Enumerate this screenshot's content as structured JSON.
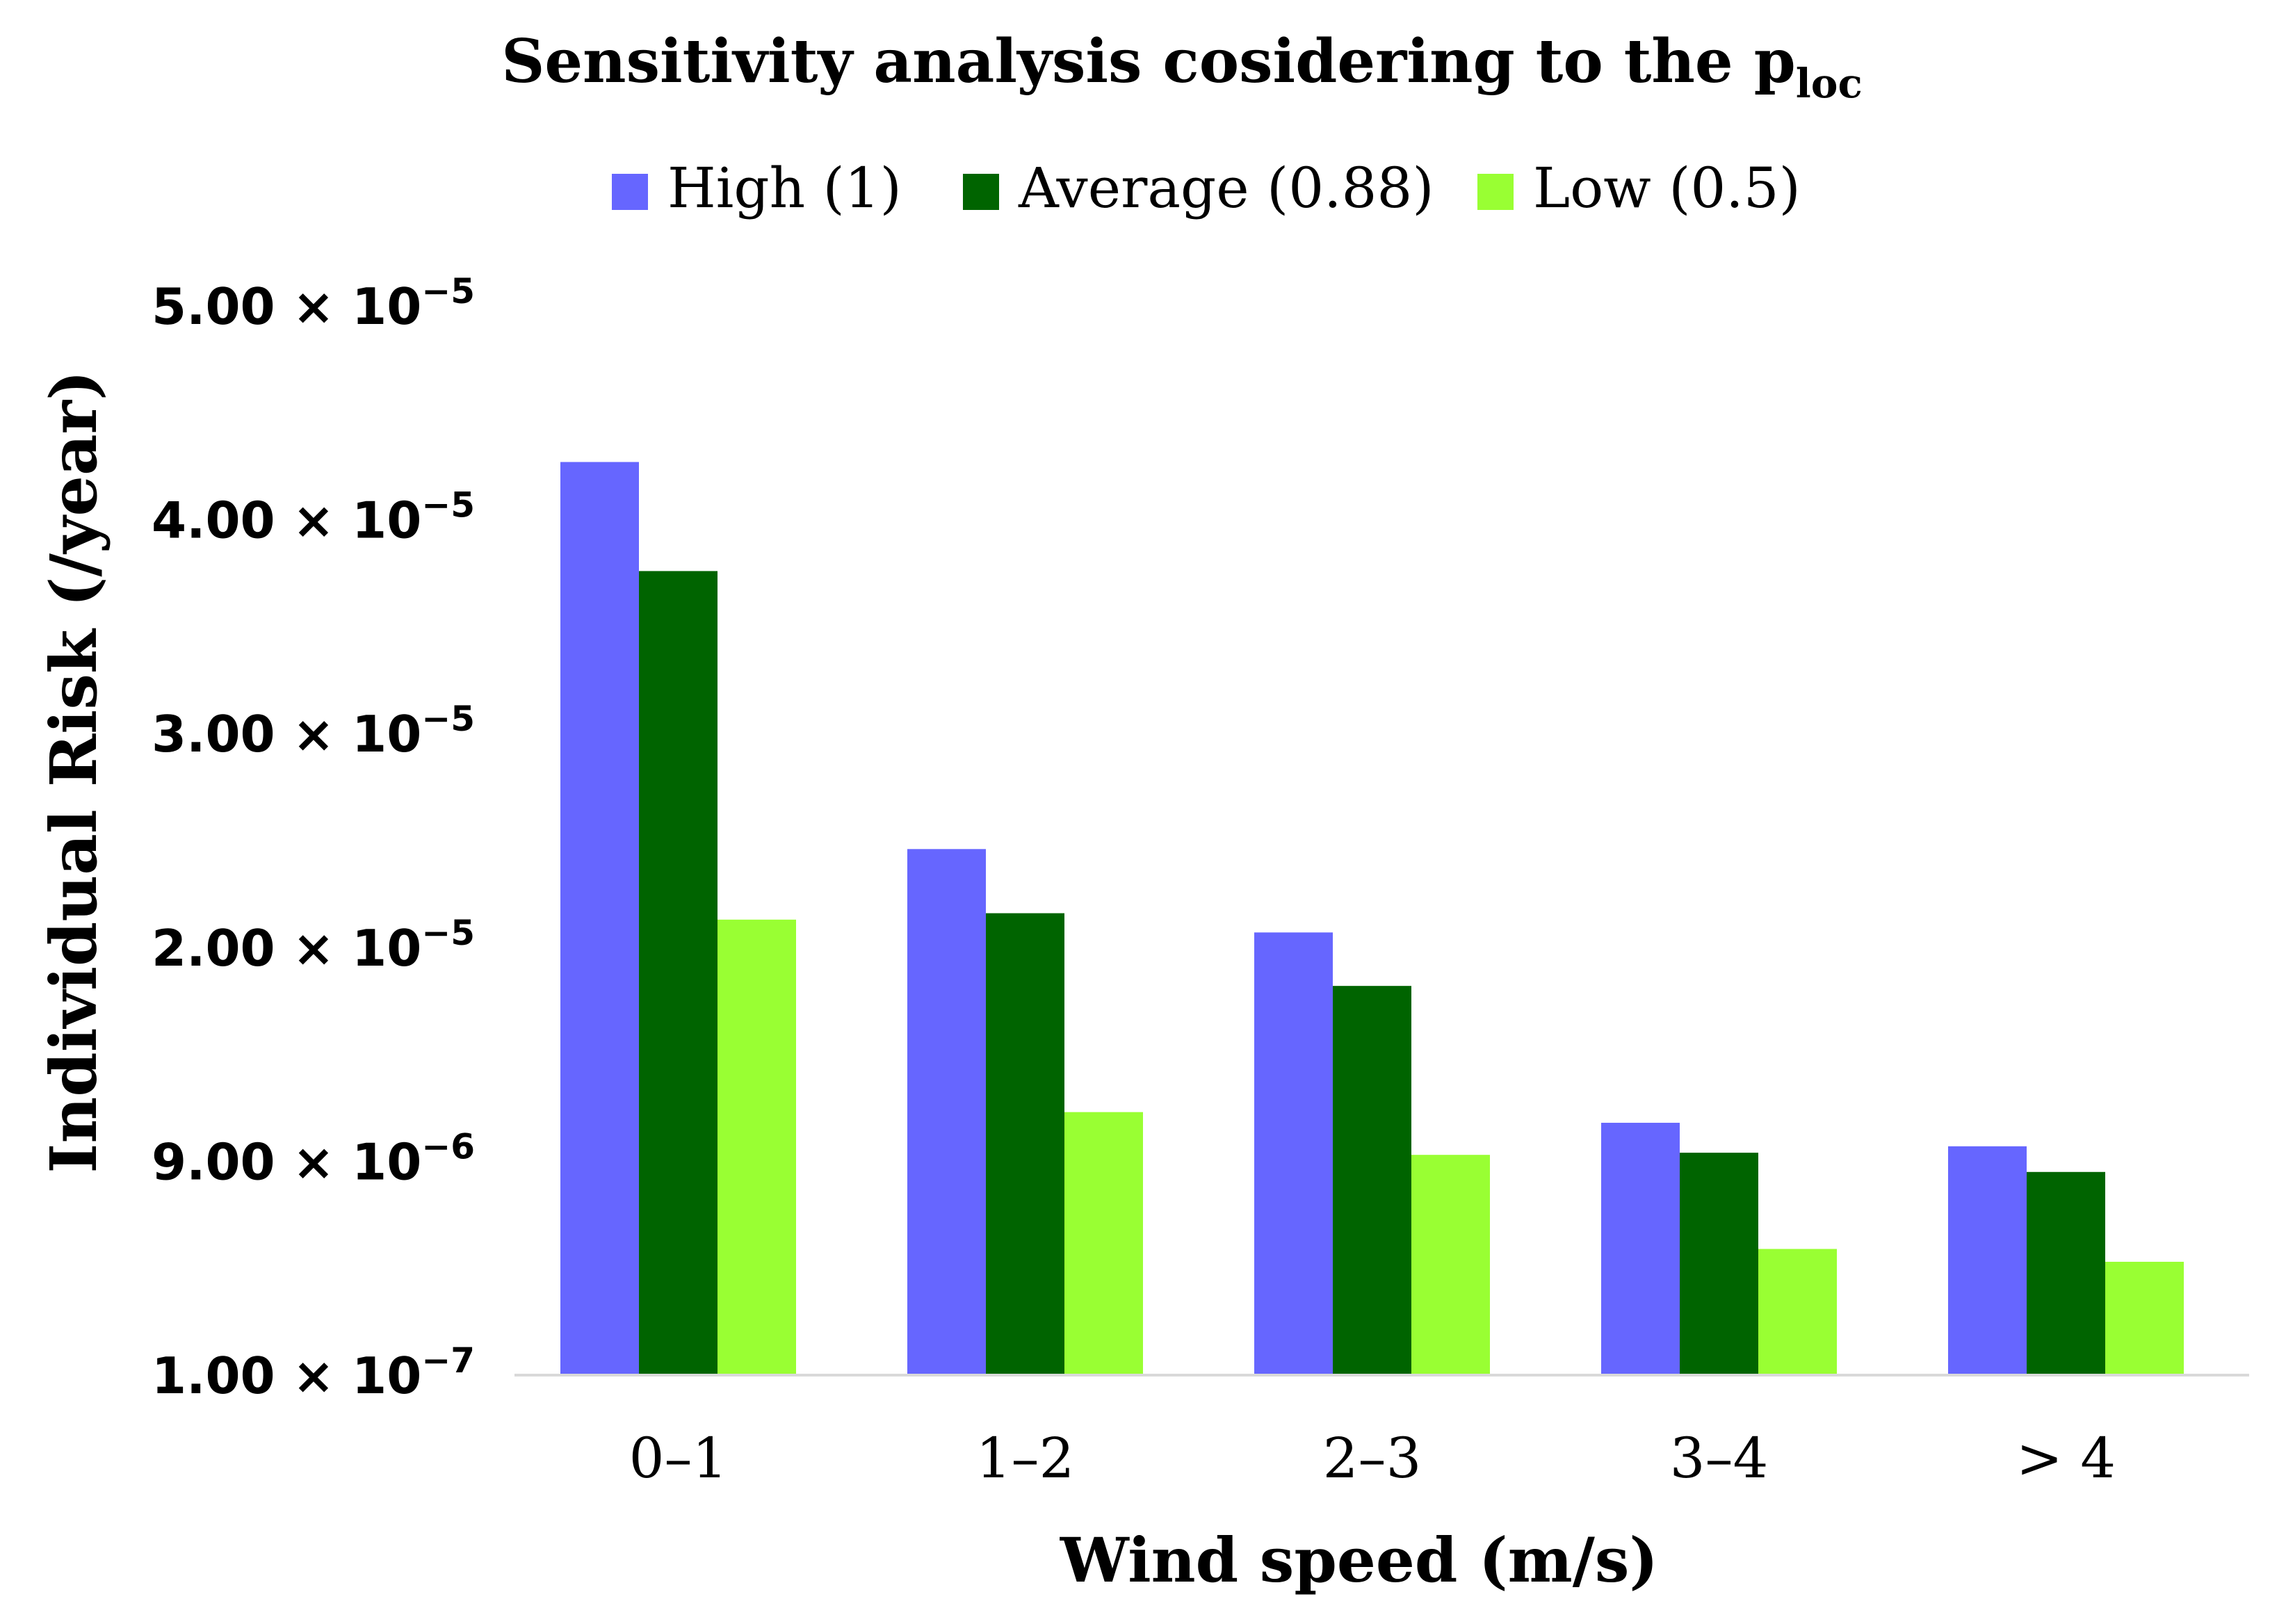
{
  "chart_data": {
    "type": "bar",
    "title": "Sensitivity analysis cosidering to the p",
    "title_subscript": "loc",
    "xlabel": "Wind speed (m/s)",
    "ylabel": "Individual Risk (/year)",
    "categories": [
      "0–1",
      "1–2",
      "2–3",
      "3–4",
      "> 4"
    ],
    "series": [
      {
        "name": "High (1)",
        "color": "#6666ff",
        "values": [
          4.27,
          2.46,
          2.07,
          1.18,
          1.07
        ]
      },
      {
        "name": "Average (0.88)",
        "color": "#006400",
        "values": [
          3.76,
          2.16,
          1.82,
          1.04,
          0.95
        ]
      },
      {
        "name": "Low (0.5)",
        "color": "#99ff33",
        "values": [
          2.13,
          1.23,
          1.03,
          0.59,
          0.53
        ]
      }
    ],
    "y_scale_note": "tick positions are evenly spaced; values expressed in tick-index units (0 = 1.00 × 10^-7, 5 = 5.00 × 10^-5)",
    "ylim": [
      0,
      5
    ],
    "y_ticks": [
      {
        "mantissa": "1.00 × 10",
        "exponent": "−7",
        "pos": 0
      },
      {
        "mantissa": "9.00 × 10",
        "exponent": "−6",
        "pos": 1
      },
      {
        "mantissa": "2.00 × 10",
        "exponent": "−5",
        "pos": 2
      },
      {
        "mantissa": "3.00 × 10",
        "exponent": "−5",
        "pos": 3
      },
      {
        "mantissa": "4.00 × 10",
        "exponent": "−5",
        "pos": 4
      },
      {
        "mantissa": "5.00 × 10",
        "exponent": "−5",
        "pos": 5
      }
    ],
    "legend_position": "top-center",
    "grid": false
  }
}
